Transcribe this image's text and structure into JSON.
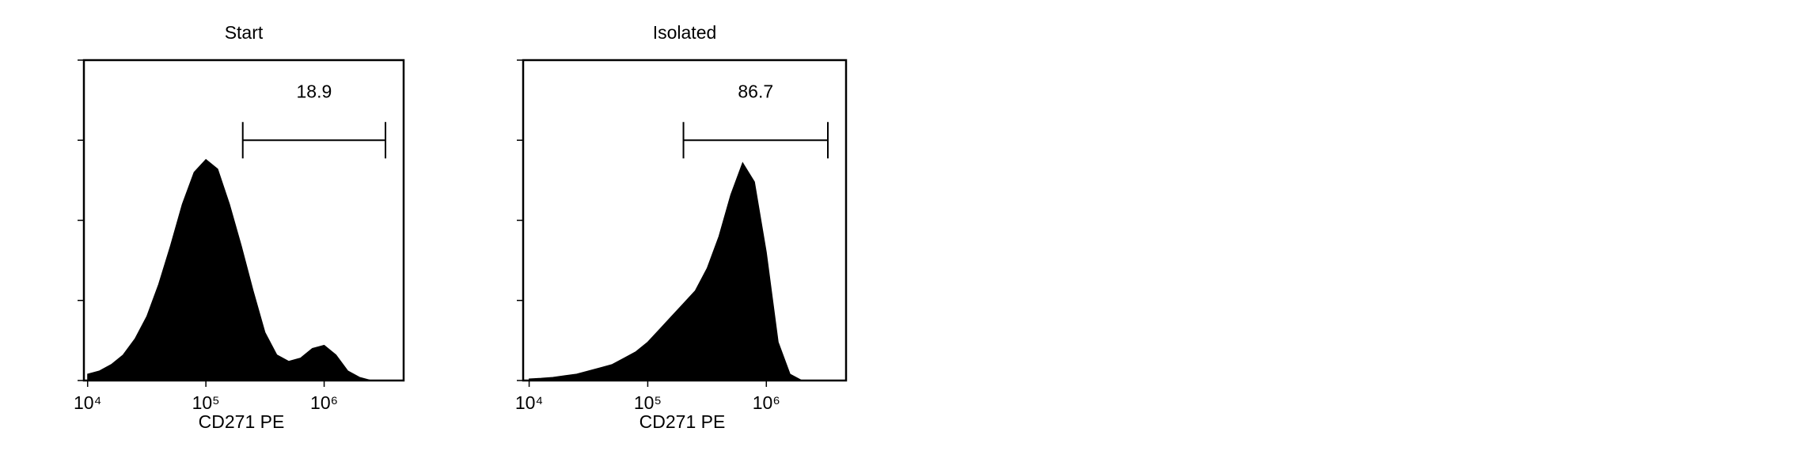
{
  "chart_data": [
    {
      "type": "area",
      "title": "Start",
      "x_label": "CD271 PE",
      "log_x": true,
      "color": "#000000",
      "x": [
        10000,
        12589,
        15849,
        19953,
        25119,
        31623,
        39811,
        50119,
        63096,
        79433,
        100000,
        125893,
        158489,
        199526,
        251189,
        316228,
        398107,
        501187,
        630957,
        794328,
        1000000,
        1258925,
        1584893,
        1995262,
        2511886,
        3162278,
        3981072
      ],
      "values": [
        2,
        3,
        5,
        8,
        13,
        20,
        30,
        42,
        55,
        65,
        69,
        66,
        55,
        42,
        28,
        15,
        8,
        6,
        7,
        10,
        11,
        8,
        3,
        1,
        0,
        0,
        0
      ],
      "xlim": [
        9300,
        4700000
      ],
      "ylim": [
        0,
        100
      ],
      "xticks": [
        {
          "value": 10000,
          "label": "10⁴"
        },
        {
          "value": 100000,
          "label": "10⁵"
        },
        {
          "value": 1000000,
          "label": "10⁶"
        }
      ],
      "yticks": [
        0,
        25,
        50,
        75,
        100
      ],
      "gate": {
        "range": [
          205000,
          3300000
        ],
        "y": 75,
        "label": 18.9
      }
    },
    {
      "type": "area",
      "title": "Isolated",
      "x_label": "CD271 PE",
      "log_x": true,
      "color": "#000000",
      "x": [
        10000,
        12589,
        15849,
        19953,
        25119,
        31623,
        39811,
        50119,
        63096,
        79433,
        100000,
        125893,
        158489,
        199526,
        251189,
        316228,
        398107,
        501187,
        630957,
        794328,
        1000000,
        1258925,
        1584893,
        1995262,
        2511886,
        3162278,
        3981072
      ],
      "values": [
        0.5,
        0.7,
        1,
        1.5,
        2,
        3,
        4,
        5,
        7,
        9,
        12,
        16,
        20,
        24,
        28,
        35,
        45,
        58,
        68,
        62,
        40,
        12,
        2,
        0,
        0,
        0,
        0
      ],
      "xlim": [
        8900,
        4700000
      ],
      "ylim": [
        0,
        100
      ],
      "xticks": [
        {
          "value": 10000,
          "label": "10⁴"
        },
        {
          "value": 100000,
          "label": "10⁵"
        },
        {
          "value": 1000000,
          "label": "10⁶"
        }
      ],
      "yticks": [
        0,
        25,
        50,
        75,
        100
      ],
      "gate": {
        "range": [
          200000,
          3300000
        ],
        "y": 75,
        "label": 86.7
      }
    }
  ]
}
